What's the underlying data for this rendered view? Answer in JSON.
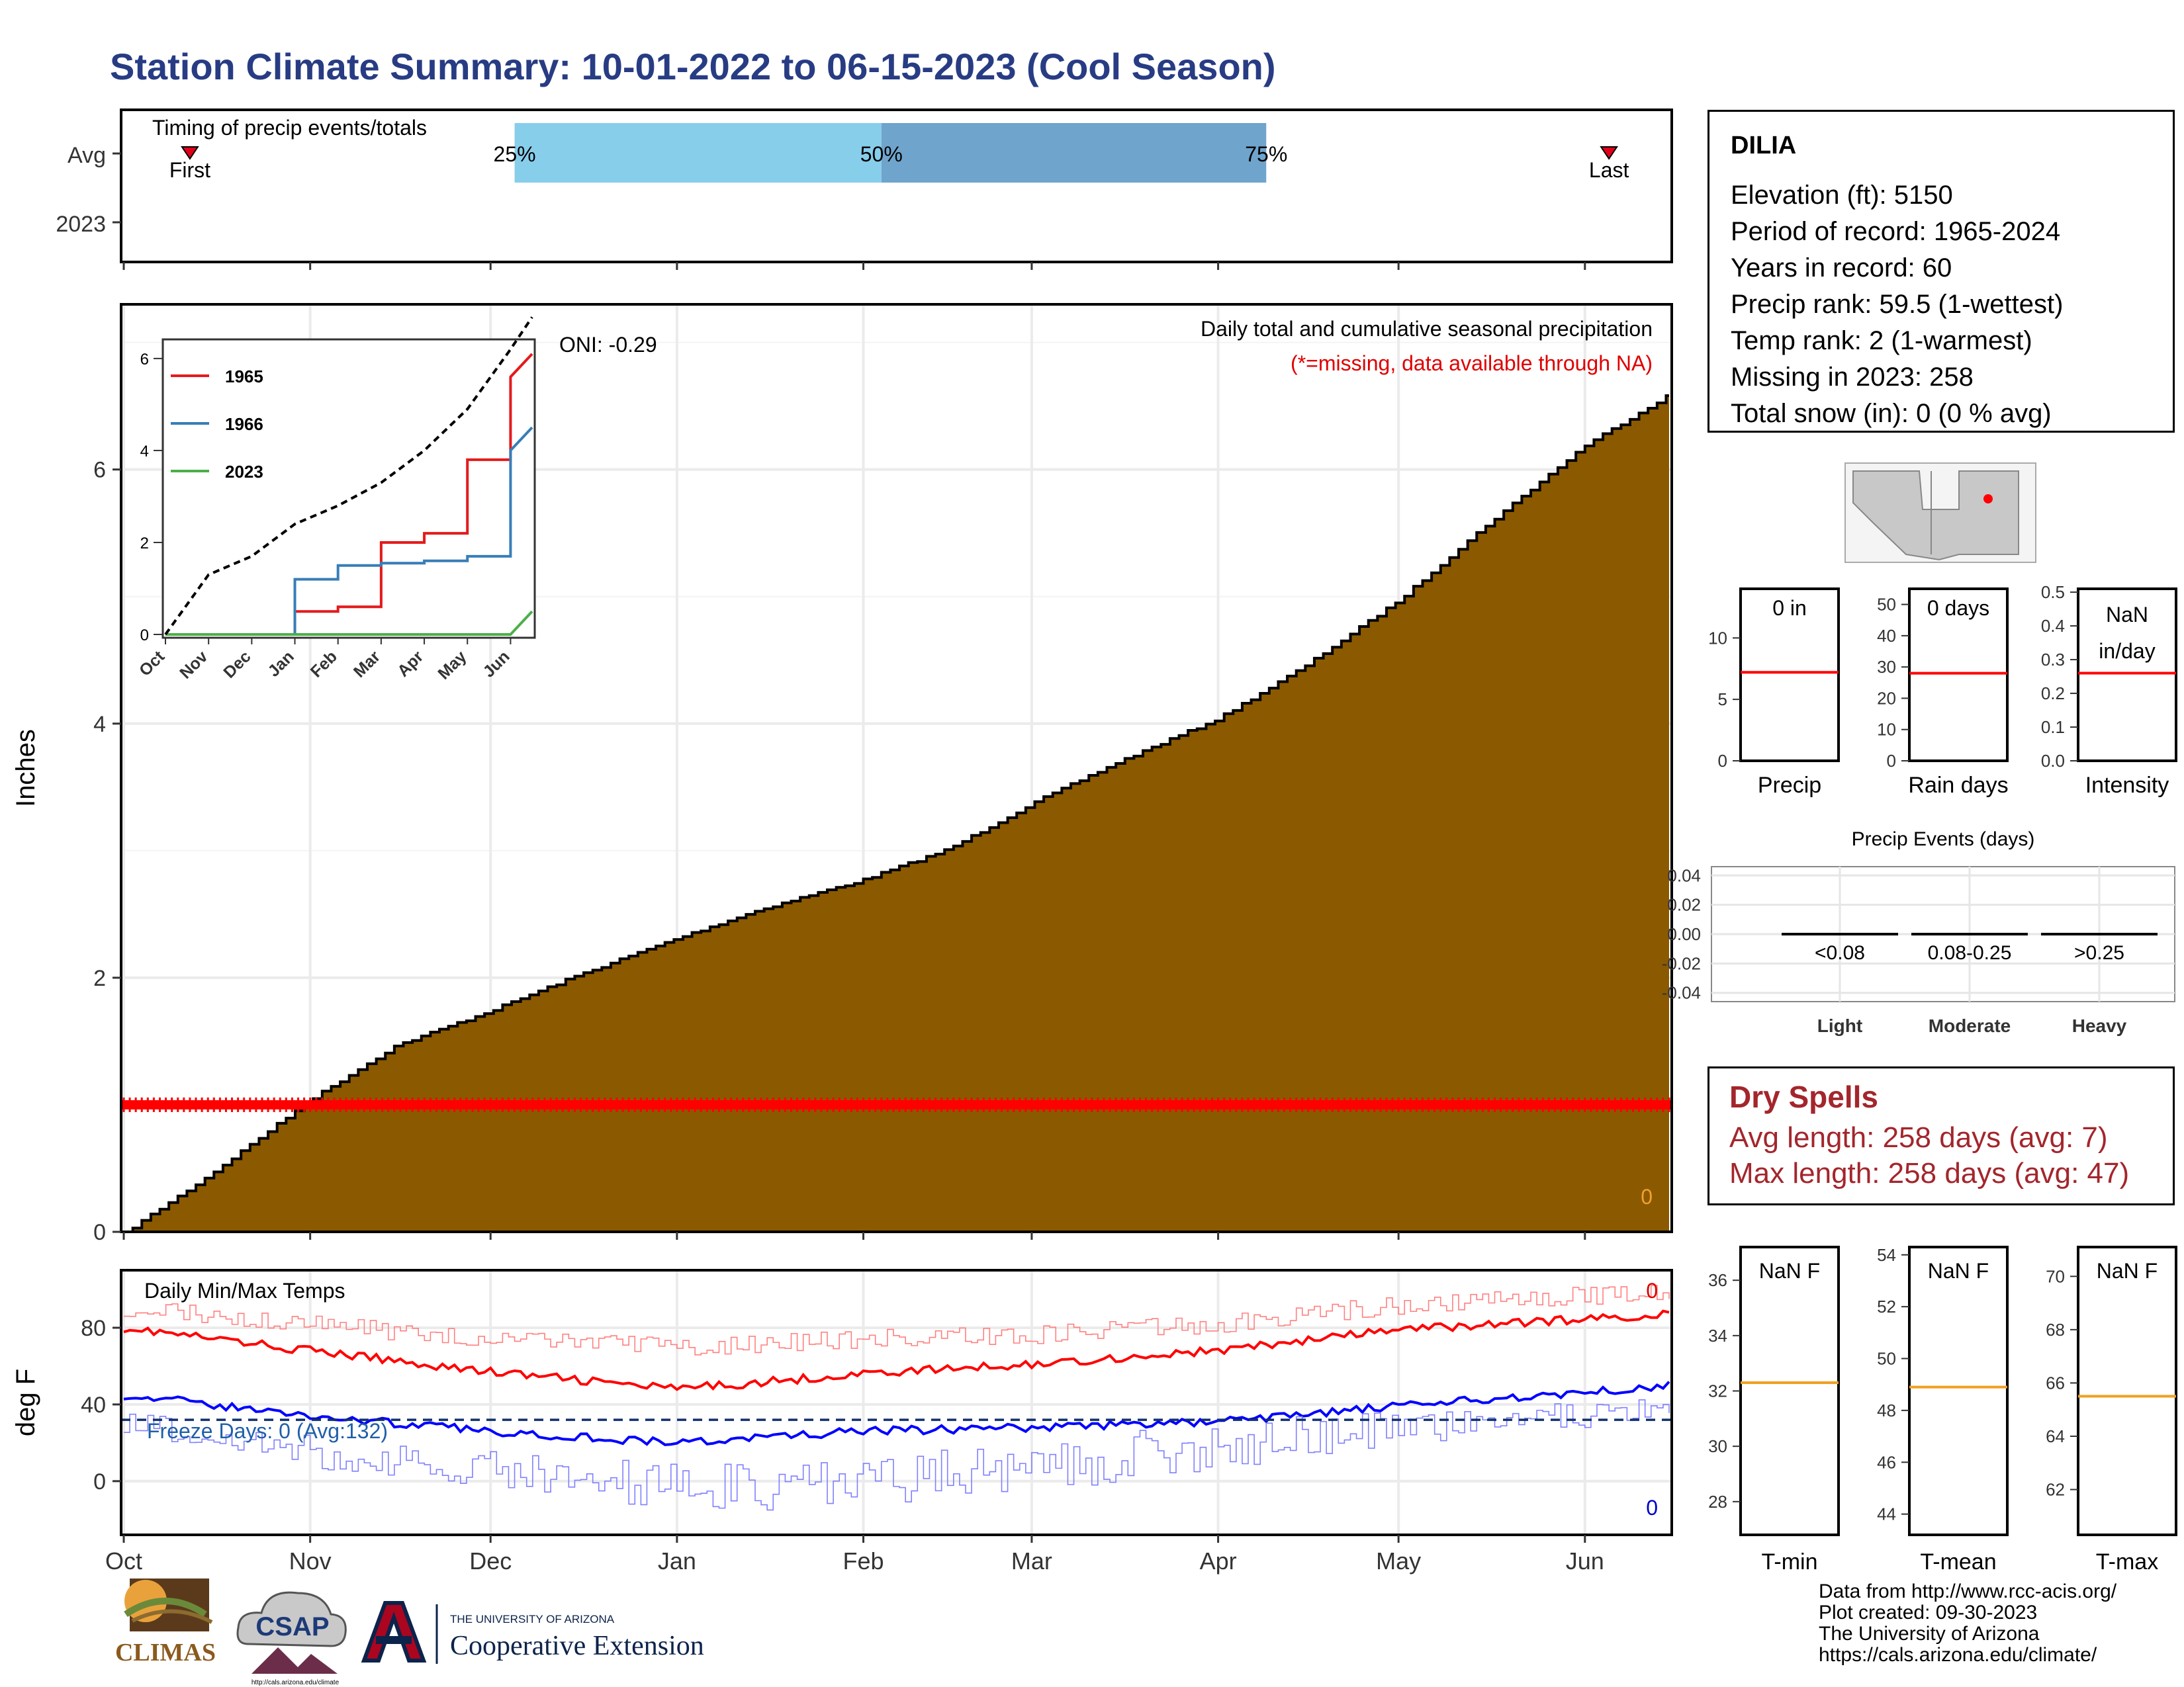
{
  "title": "Station Climate Summary: 10-01-2022 to 06-15-2023 (Cool Season)",
  "timing_panel": {
    "label": "Timing of precip events/totals",
    "rows": [
      "Avg",
      "2023"
    ],
    "first_label": "First",
    "last_label": "Last",
    "pct_labels": [
      "25%",
      "50%",
      "75%"
    ],
    "first_day": 11,
    "last_day": 247,
    "p25_day": 65,
    "p50_day": 126,
    "p75_day": 190,
    "colors": {
      "q1": "#87ceeb",
      "q2": "#6fa4cc",
      "marker": "#e0001a"
    }
  },
  "main_panel": {
    "ylabel": "Inches",
    "top_label": "Daily total and cumulative seasonal precipitation",
    "missing_note": "(*=missing, data available through NA)",
    "oni": "ONI: -0.29",
    "corner_count": "0",
    "fill_color": "#8b5a00",
    "missing_color": "#ff0000"
  },
  "inset": {
    "legend": [
      {
        "name": "1965",
        "color": "#e41a1c"
      },
      {
        "name": "1966",
        "color": "#377eb8"
      },
      {
        "name": "2023",
        "color": "#4daf4a"
      }
    ],
    "months": [
      "Oct",
      "Nov",
      "Dec",
      "Jan",
      "Feb",
      "Mar",
      "Apr",
      "May",
      "Jun"
    ]
  },
  "temp_panel": {
    "ylabel": "deg F",
    "label": "Daily Min/Max Temps",
    "freeze": "Freeze Days: 0 (Avg:132)",
    "max_count": "0",
    "min_count": "0",
    "freeze_line": 32
  },
  "x_months": [
    "Oct",
    "Nov",
    "Dec",
    "Jan",
    "Feb",
    "Mar",
    "Apr",
    "May",
    "Jun"
  ],
  "station": {
    "name": "DILIA",
    "lines": [
      "Elevation (ft): 5150",
      "Period of record: 1965-2024",
      "Years in record: 60",
      "Precip rank: 59.5 (1-wettest)",
      "Temp rank: 2 (1-warmest)",
      "Missing in 2023: 258",
      "Total snow (in): 0 (0 % avg)"
    ]
  },
  "mini_bars": [
    {
      "title": "Precip",
      "value_label": "0 in",
      "ticks": [
        0,
        5,
        10
      ],
      "ymax": 14,
      "avg": 7.2
    },
    {
      "title": "Rain days",
      "value_label": "0 days",
      "ticks": [
        0,
        10,
        20,
        30,
        40,
        50
      ],
      "ymax": 55,
      "avg": 28
    },
    {
      "title": "Intensity",
      "value_label": "NaN in/day",
      "ticks": [
        "0.0",
        "0.1",
        "0.2",
        "0.3",
        "0.4",
        "0.5"
      ],
      "ymax": 0.51,
      "avg": 0.26
    }
  ],
  "precip_events": {
    "title": "Precip Events (days)",
    "yticks": [
      "0.04",
      "0.02",
      "0.00",
      "-0.02",
      "-0.04"
    ],
    "categories": [
      "Light",
      "Moderate",
      "Heavy"
    ],
    "ranges": [
      "<0.08",
      "0.08-0.25",
      ">0.25"
    ],
    "values": [
      0,
      0,
      0
    ]
  },
  "dry_spells": {
    "title": "Dry Spells",
    "avg": "Avg length: 258 days (avg: 7)",
    "max": "Max length: 258 days (avg: 47)"
  },
  "temp_boxes": [
    {
      "title": "T-min",
      "value_label": "NaN F",
      "ticks": [
        28,
        30,
        32,
        34,
        36
      ],
      "ymin": 26.8,
      "ymax": 37.2,
      "avg": 32.3
    },
    {
      "title": "T-mean",
      "value_label": "NaN F",
      "ticks": [
        44,
        46,
        48,
        50,
        52,
        54
      ],
      "ymin": 43.2,
      "ymax": 54.3,
      "avg": 48.9
    },
    {
      "title": "T-max",
      "value_label": "NaN F",
      "ticks": [
        62,
        64,
        66,
        68,
        70
      ],
      "ymin": 60.3,
      "ymax": 71.1,
      "avg": 65.5
    }
  ],
  "logos": {
    "climas": "CLIMAS",
    "csap": "CSAP",
    "csap_url": "http://cals.arizona.edu/climate",
    "ua_top": "THE UNIVERSITY OF ARIZONA",
    "ua_bottom": "Cooperative Extension"
  },
  "credits": [
    "Data from http://www.rcc-acis.org/",
    "Plot created: 09-30-2023",
    "The University of Arizona",
    "https://cals.arizona.edu/climate/"
  ],
  "chart_data": [
    {
      "type": "area",
      "title": "Daily total and cumulative seasonal precipitation",
      "ylabel": "Inches",
      "x": [
        "Oct 1",
        "Oct 15",
        "Nov 1",
        "Nov 15",
        "Dec 1",
        "Dec 15",
        "Jan 1",
        "Jan 15",
        "Feb 1",
        "Feb 15",
        "Mar 1",
        "Mar 15",
        "Apr 1",
        "Apr 15",
        "May 1",
        "May 15",
        "Jun 1",
        "Jun 15"
      ],
      "series": [
        {
          "name": "cumulative",
          "values": [
            0.0,
            0.45,
            1.05,
            1.47,
            1.75,
            2.02,
            2.32,
            2.55,
            2.78,
            3.02,
            3.38,
            3.7,
            4.05,
            4.45,
            4.98,
            5.55,
            6.2,
            6.6
          ]
        }
      ],
      "missing_level": 1.0,
      "ylim": [
        0,
        7.3
      ]
    },
    {
      "type": "line",
      "title": "",
      "categories": [
        "Oct",
        "Nov",
        "Dec",
        "Jan",
        "Feb",
        "Mar",
        "Apr",
        "May",
        "Jun"
      ],
      "series": [
        {
          "name": "1965",
          "values": [
            0,
            0,
            0,
            0.5,
            0.6,
            2.0,
            2.2,
            3.8,
            5.6
          ]
        },
        {
          "name": "1966",
          "values": [
            0,
            0,
            0,
            1.2,
            1.5,
            1.55,
            1.6,
            1.7,
            4.0
          ]
        },
        {
          "name": "2023",
          "values": [
            0,
            0,
            0,
            0,
            0,
            0,
            0,
            0,
            0
          ]
        },
        {
          "values": [
            0,
            1.3,
            1.7,
            2.4,
            2.8,
            3.3,
            4.0,
            4.9,
            6.2
          ]
        }
      ],
      "ylim": [
        0,
        6.2
      ]
    },
    {
      "type": "line",
      "title": "Daily Min/Max Temps",
      "ylabel": "deg F",
      "x": [
        "Oct",
        "Nov",
        "Dec",
        "Jan",
        "Feb",
        "Mar",
        "Apr",
        "May",
        "Jun"
      ],
      "series": [
        {
          "values": [
            80,
            68,
            57,
            48,
            56,
            61,
            68,
            79,
            87
          ]
        },
        {
          "values": [
            45,
            34,
            26,
            20,
            26,
            28,
            31,
            39,
            50
          ]
        },
        {
          "values": [
            91,
            82,
            74,
            70,
            74,
            76,
            82,
            92,
            99
          ]
        },
        {
          "values": [
            31,
            15,
            5,
            -3,
            0,
            8,
            18,
            28,
            38
          ]
        }
      ],
      "freeze_line": 32,
      "ylim": [
        -28,
        110
      ]
    }
  ]
}
